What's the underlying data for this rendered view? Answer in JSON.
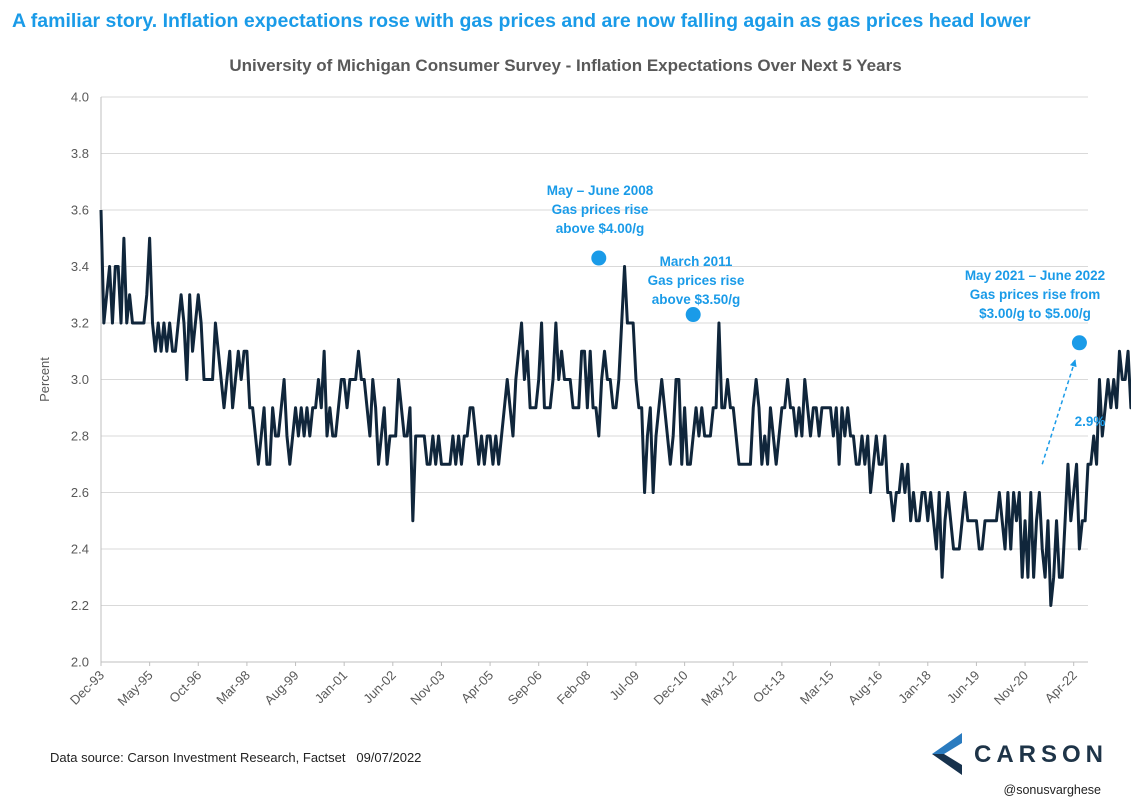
{
  "headline": "A familiar story. Inflation expectations rose with gas prices and are now falling again as gas prices head lower",
  "source_note": "Data source: Carson Investment Research, Factset   09/07/2022",
  "handle": "@sonusvarghese",
  "logo_text": "CARSON",
  "colors": {
    "line": "#10263b",
    "accent": "#1a9be8",
    "grid": "#d9d9d9",
    "logo_blue": "#2a7bbf"
  },
  "annotations": [
    {
      "lines": [
        "May – June 2008",
        "Gas prices rise",
        "above $4.00/g"
      ]
    },
    {
      "lines": [
        "March 2011",
        "Gas prices rise",
        "above $3.50/g"
      ]
    },
    {
      "lines": [
        "May 2021 – June 2022",
        "Gas prices rise from",
        "$3.00/g to $5.00/g"
      ]
    },
    {
      "lines": [
        "2.9%"
      ]
    }
  ],
  "chart_data": {
    "type": "line",
    "title": "University of Michigan Consumer Survey - Inflation Expectations Over Next 5 Years",
    "ylabel": "Percent",
    "xlabel": "",
    "ylim": [
      2.0,
      4.0
    ],
    "yticks": [
      "2.0",
      "2.2",
      "2.4",
      "2.6",
      "2.8",
      "3.0",
      "3.2",
      "3.4",
      "3.6",
      "3.8",
      "4.0"
    ],
    "xticks": [
      "Dec-93",
      "May-95",
      "Oct-96",
      "Mar-98",
      "Aug-99",
      "Jan-01",
      "Jun-02",
      "Nov-03",
      "Apr-05",
      "Sep-06",
      "Feb-08",
      "Jul-09",
      "Dec-10",
      "May-12",
      "Oct-13",
      "Mar-15",
      "Aug-16",
      "Jan-18",
      "Jun-19",
      "Nov-20",
      "Apr-22"
    ],
    "grid": true,
    "x_start": "1993-12",
    "x_end": "2022-09",
    "highlights": [
      {
        "date": "2008-06",
        "value": 3.43
      },
      {
        "date": "2011-03",
        "value": 3.23
      },
      {
        "date": "2022-06",
        "value": 3.13
      }
    ],
    "trend_arrow": {
      "from": {
        "date": "2021-05",
        "value": 2.7
      },
      "to": {
        "date": "2022-06",
        "value": 3.1
      }
    },
    "series": [
      {
        "values": [
          3.6,
          3.2,
          3.3,
          3.4,
          3.2,
          3.4,
          3.4,
          3.2,
          3.5,
          3.2,
          3.3,
          3.2,
          3.2,
          3.2,
          3.2,
          3.2,
          3.3,
          3.5,
          3.2,
          3.1,
          3.2,
          3.1,
          3.2,
          3.1,
          3.2,
          3.1,
          3.1,
          3.2,
          3.3,
          3.2,
          3.0,
          3.3,
          3.1,
          3.2,
          3.3,
          3.2,
          3.0,
          3.0,
          3.0,
          3.0,
          3.2,
          3.1,
          3.0,
          2.9,
          3.0,
          3.1,
          2.9,
          3.0,
          3.1,
          3.0,
          3.1,
          3.1,
          2.9,
          2.9,
          2.8,
          2.7,
          2.8,
          2.9,
          2.7,
          2.7,
          2.9,
          2.8,
          2.8,
          2.9,
          3.0,
          2.8,
          2.7,
          2.8,
          2.9,
          2.8,
          2.9,
          2.8,
          2.9,
          2.8,
          2.9,
          2.9,
          3.0,
          2.9,
          3.1,
          2.8,
          2.9,
          2.8,
          2.8,
          2.9,
          3.0,
          3.0,
          2.9,
          3.0,
          3.0,
          3.0,
          3.1,
          3.0,
          3.0,
          2.9,
          2.8,
          3.0,
          2.9,
          2.7,
          2.8,
          2.9,
          2.7,
          2.8,
          2.8,
          2.8,
          3.0,
          2.9,
          2.8,
          2.8,
          2.9,
          2.5,
          2.8,
          2.8,
          2.8,
          2.8,
          2.7,
          2.7,
          2.8,
          2.7,
          2.8,
          2.7,
          2.7,
          2.7,
          2.7,
          2.8,
          2.7,
          2.8,
          2.7,
          2.8,
          2.8,
          2.9,
          2.9,
          2.8,
          2.7,
          2.8,
          2.7,
          2.8,
          2.8,
          2.7,
          2.8,
          2.7,
          2.8,
          2.9,
          3.0,
          2.9,
          2.8,
          3.0,
          3.1,
          3.2,
          3.0,
          3.1,
          2.9,
          2.9,
          2.9,
          3.0,
          3.2,
          2.9,
          2.9,
          2.9,
          3.0,
          3.2,
          3.0,
          3.1,
          3.0,
          3.0,
          3.0,
          2.9,
          2.9,
          2.9,
          3.1,
          3.1,
          2.9,
          3.1,
          2.9,
          2.9,
          2.8,
          3.0,
          3.1,
          3.0,
          3.0,
          2.9,
          2.9,
          3.0,
          3.2,
          3.4,
          3.2,
          3.2,
          3.2,
          3.0,
          2.9,
          2.9,
          2.6,
          2.8,
          2.9,
          2.6,
          2.8,
          2.9,
          3.0,
          2.9,
          2.8,
          2.7,
          2.8,
          3.0,
          3.0,
          2.7,
          2.9,
          2.7,
          2.7,
          2.8,
          2.9,
          2.8,
          2.9,
          2.8,
          2.8,
          2.8,
          2.9,
          2.9,
          3.2,
          2.9,
          2.9,
          3.0,
          2.9,
          2.9,
          2.8,
          2.7,
          2.7,
          2.7,
          2.7,
          2.7,
          2.9,
          3.0,
          2.9,
          2.7,
          2.8,
          2.7,
          2.9,
          2.8,
          2.7,
          2.8,
          2.9,
          2.9,
          3.0,
          2.9,
          2.9,
          2.8,
          2.9,
          2.8,
          3.0,
          2.9,
          2.8,
          2.9,
          2.9,
          2.8,
          2.9,
          2.9,
          2.9,
          2.9,
          2.8,
          2.9,
          2.7,
          2.9,
          2.8,
          2.9,
          2.8,
          2.8,
          2.7,
          2.7,
          2.8,
          2.7,
          2.8,
          2.6,
          2.7,
          2.8,
          2.7,
          2.7,
          2.8,
          2.6,
          2.6,
          2.5,
          2.6,
          2.6,
          2.7,
          2.6,
          2.7,
          2.5,
          2.6,
          2.5,
          2.5,
          2.6,
          2.6,
          2.5,
          2.6,
          2.5,
          2.4,
          2.6,
          2.3,
          2.5,
          2.6,
          2.5,
          2.4,
          2.4,
          2.4,
          2.5,
          2.6,
          2.5,
          2.5,
          2.5,
          2.5,
          2.4,
          2.4,
          2.5,
          2.5,
          2.5,
          2.5,
          2.5,
          2.6,
          2.5,
          2.4,
          2.6,
          2.4,
          2.6,
          2.5,
          2.6,
          2.3,
          2.5,
          2.3,
          2.6,
          2.3,
          2.5,
          2.6,
          2.4,
          2.3,
          2.5,
          2.2,
          2.3,
          2.5,
          2.3,
          2.3,
          2.5,
          2.7,
          2.5,
          2.6,
          2.7,
          2.4,
          2.5,
          2.5,
          2.7,
          2.7,
          2.8,
          2.7,
          3.0,
          2.8,
          2.9,
          3.0,
          2.9,
          3.0,
          2.9,
          3.1,
          3.0,
          3.0,
          3.1,
          2.9,
          2.9
        ]
      }
    ]
  }
}
